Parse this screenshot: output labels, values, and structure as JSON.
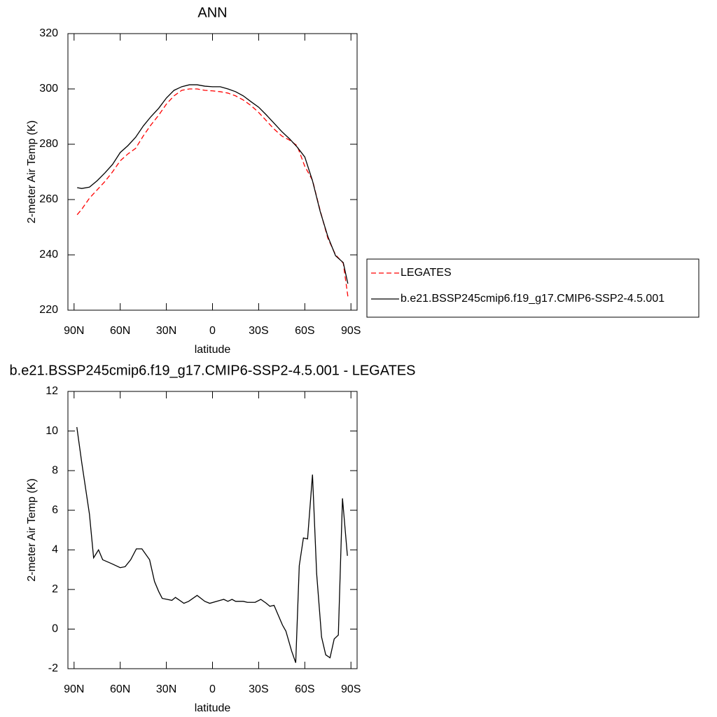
{
  "chart_data": [
    {
      "type": "line",
      "title": "ANN",
      "x_label": "latitude",
      "y_label": "2-meter Air Temp (K)",
      "x": [
        88,
        85,
        80,
        75,
        70,
        65,
        60,
        55,
        50,
        45,
        40,
        35,
        30,
        25,
        20,
        15,
        10,
        5,
        0,
        -5,
        -10,
        -15,
        -20,
        -25,
        -30,
        -35,
        -40,
        -45,
        -50,
        -55,
        -60,
        -65,
        -70,
        -75,
        -80,
        -85,
        -88
      ],
      "series": [
        {
          "name": "LEGATES",
          "color": "#ff0000",
          "dashed": true,
          "values": [
            254.5,
            256.5,
            260.5,
            263.5,
            266.5,
            270,
            274,
            276.5,
            278.5,
            283,
            287,
            290.5,
            294.5,
            297.5,
            299.5,
            300,
            300,
            299.5,
            299.3,
            299,
            298.5,
            297.5,
            296,
            294,
            291.5,
            288.5,
            285.5,
            283,
            281.5,
            279.5,
            272,
            267,
            256,
            246,
            240,
            237,
            225
          ]
        },
        {
          "name": "b.e21.BSSP245cmip6.f19_g17.CMIP6-SSP2-4.5.001",
          "color": "#000000",
          "dashed": false,
          "values": [
            264.3,
            264,
            264.5,
            266.8,
            269.6,
            272.7,
            277,
            279.5,
            282.5,
            286.6,
            290,
            293,
            296.7,
            299.5,
            300.8,
            301.5,
            301.5,
            301,
            300.8,
            300.8,
            300,
            299,
            297.5,
            295.4,
            293.4,
            290.6,
            287.6,
            284.6,
            282,
            279,
            275.4,
            266.8,
            255.7,
            246.6,
            239.7,
            237.2,
            229.6
          ]
        }
      ],
      "xlim": [
        94,
        -94
      ],
      "xticks": [
        {
          "value": 90,
          "label": "90N"
        },
        {
          "value": 60,
          "label": "60N"
        },
        {
          "value": 30,
          "label": "30N"
        },
        0,
        {
          "value": -30,
          "label": "30S"
        },
        {
          "value": -60,
          "label": "60S"
        },
        {
          "value": -90,
          "label": "90S"
        }
      ],
      "ylim": [
        220,
        320
      ],
      "yticks": [
        220,
        240,
        260,
        280,
        300,
        320
      ],
      "legend": "right"
    },
    {
      "type": "line",
      "title": "b.e21.BSSP245cmip6.f19_g17.CMIP6-SSP2-4.5.001 - LEGATES",
      "x_label": "latitude",
      "y_label": "2-meter Air Temp (K)",
      "x": [
        88.2,
        85.0,
        80.0,
        77.3,
        74.1,
        71.4,
        65.5,
        60.0,
        56.8,
        53.2,
        49.5,
        45.9,
        40.9,
        37.7,
        35.0,
        32.7,
        26.4,
        24.1,
        18.6,
        15.5,
        10.0,
        5.0,
        1.8,
        -5.0,
        -7.3,
        -10.0,
        -12.7,
        -15.0,
        -20.0,
        -22.7,
        -27.7,
        -31.4,
        -35.0,
        -37.3,
        -40.0,
        -45.5,
        -47.7,
        -51.4,
        -54.1,
        -56.4,
        -59.1,
        -61.8,
        -65.0,
        -67.7,
        -70.9,
        -73.6,
        -76.4,
        -79.1,
        -81.8,
        -84.5,
        -87.7
      ],
      "color": "#000000",
      "values": [
        10.2,
        8.4,
        5.8,
        3.6,
        4.0,
        3.5,
        3.3,
        3.1,
        3.15,
        3.5,
        4.05,
        4.05,
        3.5,
        2.4,
        1.9,
        1.55,
        1.45,
        1.6,
        1.3,
        1.4,
        1.7,
        1.4,
        1.3,
        1.45,
        1.5,
        1.4,
        1.5,
        1.4,
        1.4,
        1.35,
        1.35,
        1.5,
        1.3,
        1.15,
        1.2,
        0.2,
        -0.1,
        -1.1,
        -1.7,
        3.2,
        4.6,
        4.55,
        7.8,
        2.8,
        -0.4,
        -1.3,
        -1.45,
        -0.5,
        -0.3,
        6.6,
        3.7
      ],
      "xlim": [
        94,
        -94
      ],
      "xticks": [
        {
          "value": 90,
          "label": "90N"
        },
        {
          "value": 60,
          "label": "60N"
        },
        {
          "value": 30,
          "label": "30N"
        },
        0,
        {
          "value": -30,
          "label": "30S"
        },
        {
          "value": -60,
          "label": "60S"
        },
        {
          "value": -90,
          "label": "90S"
        }
      ],
      "ylim": [
        -2,
        12
      ],
      "yticks": [
        -2,
        0,
        2,
        4,
        6,
        8,
        10,
        12
      ]
    }
  ]
}
